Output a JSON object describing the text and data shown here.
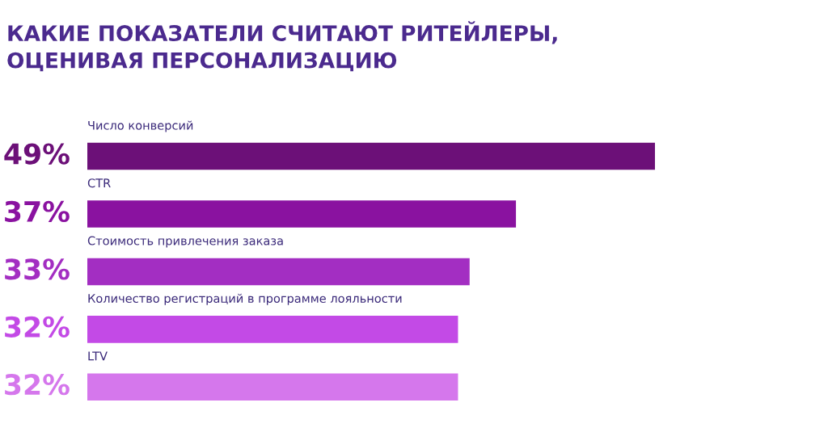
{
  "chart_data": {
    "type": "bar",
    "orientation": "horizontal",
    "title": "КАКИЕ ПОКАЗАТЕЛИ СЧИТАЮТ РИТЕЙЛЕРЫ,\nОЦЕНИВАЯ ПЕРСОНАЛИЗАЦИЮ",
    "categories": [
      "Число конверсий",
      "CTR",
      "Стоимость привлечения заказа",
      "Количество регистраций в программе лояльности",
      "LTV"
    ],
    "values": [
      49,
      37,
      33,
      32,
      32
    ],
    "colors": [
      "#6c1078",
      "#8a12a0",
      "#a32ec2",
      "#c34ae6",
      "#d577ec"
    ],
    "value_labels": [
      "49%",
      "37%",
      "33%",
      "32%",
      "32%"
    ]
  }
}
